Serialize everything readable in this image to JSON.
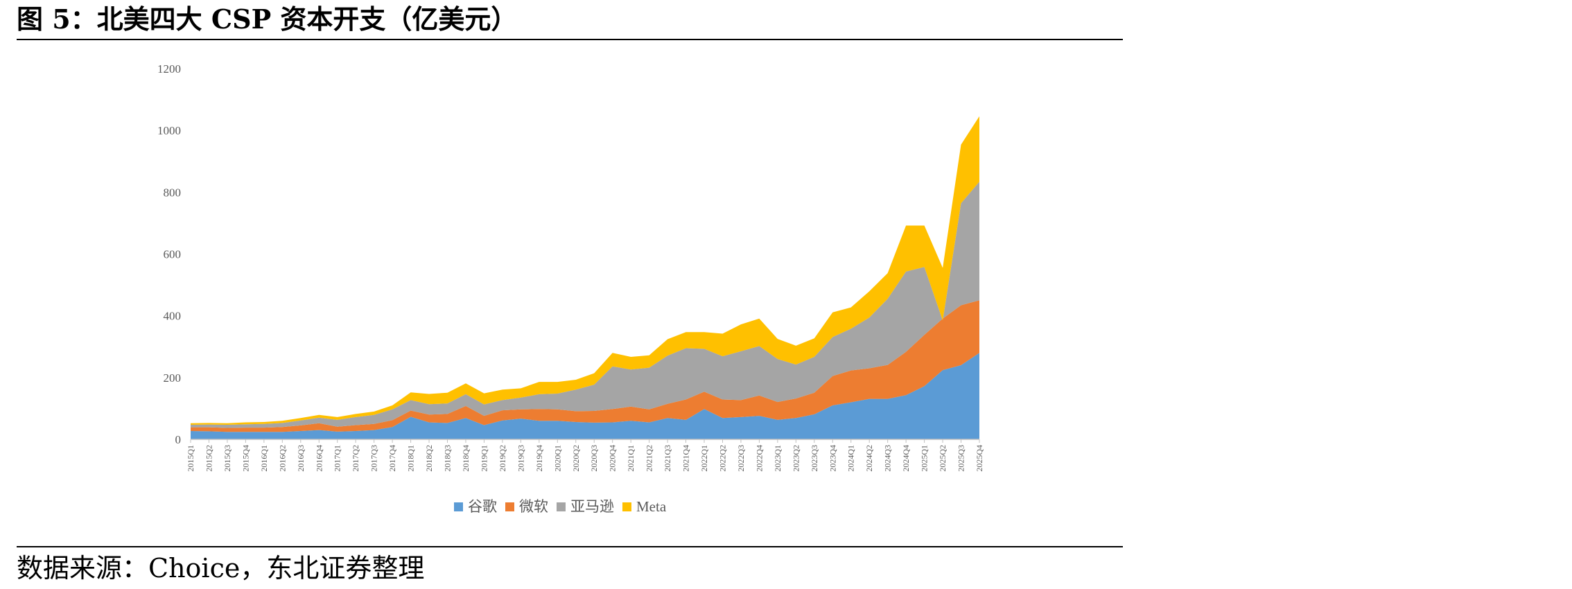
{
  "figure": {
    "title": "图 5：北美四大 CSP 资本开支（亿美元）",
    "source": "数据来源：Choice，东北证券整理"
  },
  "chart_data": {
    "type": "area",
    "stacked": true,
    "title": "",
    "xlabel": "",
    "ylabel": "",
    "ylim": [
      0,
      1200
    ],
    "yticks": [
      0,
      200,
      400,
      600,
      800,
      1000,
      1200
    ],
    "grid": false,
    "legend_position": "bottom",
    "categories": [
      "2015Q1",
      "2015Q2",
      "2015Q3",
      "2015Q4",
      "2016Q1",
      "2016Q2",
      "2016Q3",
      "2016Q4",
      "2017Q1",
      "2017Q2",
      "2017Q3",
      "2017Q4",
      "2018Q1",
      "2018Q2",
      "2018Q3",
      "2018Q4",
      "2019Q1",
      "2019Q2",
      "2019Q3",
      "2019Q4",
      "2020Q1",
      "2020Q2",
      "2020Q3",
      "2020Q4",
      "2021Q1",
      "2021Q2",
      "2021Q3",
      "2021Q4",
      "2022Q1",
      "2022Q2",
      "2022Q3",
      "2022Q4",
      "2023Q1",
      "2023Q2",
      "2023Q3",
      "2023Q4",
      "2024Q1",
      "2024Q2",
      "2024Q3",
      "2024Q4",
      "2025Q1",
      "2025Q2",
      "2025Q3",
      "2025Q4"
    ],
    "series": [
      {
        "name": "谷歌",
        "color": "#5B9BD5",
        "values": [
          27,
          26,
          24,
          24,
          24,
          24,
          27,
          30,
          25,
          27,
          30,
          40,
          73,
          55,
          53,
          69,
          46,
          61,
          67,
          60,
          60,
          56,
          54,
          55,
          60,
          55,
          69,
          63,
          98,
          69,
          72,
          76,
          63,
          69,
          81,
          110,
          120,
          131,
          131,
          143,
          172,
          224,
          240,
          280
        ]
      },
      {
        "name": "微软",
        "color": "#ED7D31",
        "values": [
          12,
          13,
          13,
          14,
          14,
          16,
          18,
          22,
          16,
          19,
          20,
          22,
          20,
          25,
          29,
          39,
          30,
          33,
          30,
          38,
          37,
          35,
          38,
          43,
          46,
          42,
          46,
          66,
          56,
          60,
          55,
          66,
          58,
          63,
          70,
          95,
          103,
          99,
          110,
          140,
          166,
          167,
          194,
          170
        ]
      },
      {
        "name": "亚马逊",
        "color": "#A5A5A5",
        "values": [
          8,
          9,
          10,
          11,
          12,
          13,
          16,
          18,
          22,
          26,
          29,
          35,
          34,
          34,
          34,
          38,
          37,
          33,
          38,
          48,
          51,
          70,
          85,
          138,
          120,
          135,
          156,
          166,
          139,
          140,
          158,
          160,
          139,
          110,
          116,
          126,
          135,
          164,
          214,
          260,
          220,
          -6,
          330,
          384
        ]
      },
      {
        "name": "Meta",
        "color": "#FFC000",
        "values": [
          5,
          5,
          5,
          6,
          6,
          7,
          8,
          9,
          9,
          10,
          11,
          13,
          25,
          33,
          35,
          35,
          36,
          34,
          30,
          40,
          38,
          32,
          37,
          44,
          41,
          40,
          53,
          52,
          54,
          73,
          87,
          89,
          65,
          61,
          60,
          80,
          69,
          85,
          83,
          149,
          134,
          170,
          190,
          212
        ]
      }
    ]
  }
}
